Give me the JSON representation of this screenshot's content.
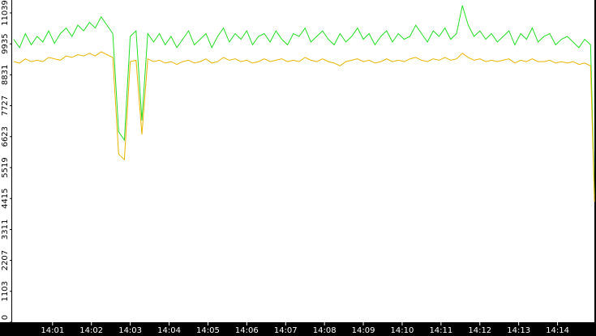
{
  "chart_data": {
    "type": "line",
    "x": [
      0,
      0.15,
      0.3,
      0.45,
      0.6,
      0.75,
      0.9,
      1.05,
      1.2,
      1.35,
      1.5,
      1.65,
      1.8,
      1.95,
      2.1,
      2.25,
      2.4,
      2.55,
      2.7,
      2.85,
      3,
      3.15,
      3.3,
      3.45,
      3.6,
      3.75,
      3.9,
      4.05,
      4.2,
      4.35,
      4.5,
      4.65,
      4.8,
      4.95,
      5.1,
      5.25,
      5.4,
      5.55,
      5.7,
      5.85,
      6,
      6.15,
      6.3,
      6.45,
      6.6,
      6.75,
      6.9,
      7.05,
      7.2,
      7.35,
      7.5,
      7.65,
      7.8,
      7.95,
      8.1,
      8.25,
      8.4,
      8.55,
      8.7,
      8.85,
      9,
      9.15,
      9.3,
      9.45,
      9.6,
      9.75,
      9.9,
      10.05,
      10.2,
      10.35,
      10.5,
      10.65,
      10.8,
      10.95,
      11.1,
      11.25,
      11.4,
      11.55,
      11.7,
      11.85,
      12,
      12.15,
      12.3,
      12.45,
      12.6,
      12.75,
      12.9,
      13.05,
      13.2,
      13.35,
      13.5,
      13.65,
      13.8,
      13.95,
      14.1,
      14.25,
      14.4,
      14.55,
      14.7,
      14.85,
      14.95
    ],
    "series": [
      {
        "color": "#22dd22",
        "values": [
          10100,
          9800,
          10300,
          9900,
          10200,
          10000,
          10400,
          9950,
          10300,
          10500,
          10200,
          10600,
          10400,
          10700,
          10500,
          10900,
          10600,
          10300,
          6800,
          6500,
          10200,
          10400,
          7200,
          10300,
          10000,
          10300,
          9900,
          10200,
          9800,
          10100,
          10400,
          9900,
          10100,
          10300,
          9800,
          10200,
          10500,
          10000,
          10300,
          10100,
          10400,
          9900,
          10200,
          10300,
          10000,
          10400,
          10100,
          9900,
          10300,
          10200,
          10500,
          10000,
          10200,
          10400,
          10100,
          9900,
          10300,
          10000,
          10200,
          10500,
          10100,
          10300,
          9900,
          10200,
          10400,
          10000,
          10300,
          10100,
          10200,
          10600,
          10300,
          10000,
          10400,
          10200,
          10500,
          10100,
          10300,
          11300,
          10600,
          10200,
          10400,
          10100,
          10300,
          10000,
          10200,
          10400,
          9900,
          10300,
          10100,
          10500,
          10000,
          10200,
          10300,
          9900,
          10100,
          10200,
          10000,
          9800,
          10100,
          9900,
          4500
        ]
      },
      {
        "color": "#e8b400",
        "values": [
          9300,
          9250,
          9400,
          9300,
          9350,
          9300,
          9450,
          9400,
          9350,
          9500,
          9450,
          9550,
          9500,
          9600,
          9500,
          9650,
          9550,
          9450,
          6000,
          5800,
          9300,
          9350,
          6700,
          9400,
          9300,
          9350,
          9250,
          9300,
          9200,
          9300,
          9350,
          9250,
          9300,
          9400,
          9250,
          9300,
          9450,
          9350,
          9400,
          9300,
          9350,
          9250,
          9300,
          9400,
          9300,
          9350,
          9400,
          9300,
          9350,
          9300,
          9450,
          9350,
          9300,
          9400,
          9300,
          9250,
          9150,
          9300,
          9350,
          9400,
          9300,
          9350,
          9250,
          9300,
          9400,
          9300,
          9350,
          9300,
          9400,
          9450,
          9350,
          9300,
          9400,
          9350,
          9450,
          9350,
          9400,
          9600,
          9450,
          9350,
          9400,
          9300,
          9350,
          9300,
          9350,
          9400,
          9250,
          9350,
          9300,
          9400,
          9300,
          9300,
          9350,
          9250,
          9300,
          9250,
          9300,
          9200,
          9250,
          9150,
          4300
        ]
      }
    ],
    "xlim": [
      -0.04,
      14.99
    ],
    "xticks": [
      {
        "value": 1,
        "label": "14:01"
      },
      {
        "value": 2,
        "label": "14:02"
      },
      {
        "value": 3,
        "label": "14:03"
      },
      {
        "value": 4,
        "label": "14:04"
      },
      {
        "value": 5,
        "label": "14:05"
      },
      {
        "value": 6,
        "label": "14:06"
      },
      {
        "value": 7,
        "label": "14:07"
      },
      {
        "value": 8,
        "label": "14:08"
      },
      {
        "value": 9,
        "label": "14:09"
      },
      {
        "value": 10,
        "label": "14:10"
      },
      {
        "value": 11,
        "label": "14:11"
      },
      {
        "value": 12,
        "label": "14:12"
      },
      {
        "value": 13,
        "label": "14:13"
      },
      {
        "value": 14,
        "label": "14:14"
      }
    ],
    "ylim": [
      0,
      11500
    ],
    "yticks": [
      0,
      1103,
      2207,
      3311,
      4415,
      5519,
      6623,
      7727,
      8831,
      9935,
      11039
    ]
  }
}
